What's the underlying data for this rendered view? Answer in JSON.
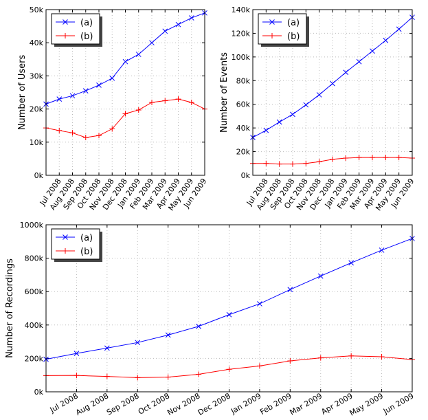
{
  "chart_data": [
    {
      "type": "line",
      "ylabel": "Number of Users",
      "categories": [
        null,
        "Jul 2008",
        "Aug 2008",
        "Sep 2008",
        "Oct 2008",
        "Nov 2008",
        "Dec 2008",
        "Jan 2009",
        "Feb 2009",
        "Mar 2009",
        "Apr 2009",
        "May 2009",
        "Jun 2009"
      ],
      "ylim": [
        0,
        50000
      ],
      "yticks": [
        {
          "value": 0,
          "label": "0k"
        },
        {
          "value": 10000,
          "label": "10k"
        },
        {
          "value": 20000,
          "label": "20k"
        },
        {
          "value": 30000,
          "label": "30k"
        },
        {
          "value": 40000,
          "label": "40k"
        },
        {
          "value": 50000,
          "label": "50k"
        }
      ],
      "grid": true,
      "legend": "upper left",
      "series": [
        {
          "name": "(a)",
          "color": "#0000ff",
          "marker": "x",
          "values": [
            21500,
            23000,
            24000,
            25500,
            27200,
            29300,
            34300,
            36500,
            40000,
            43500,
            45500,
            47500,
            49000
          ]
        },
        {
          "name": "(b)",
          "color": "#ff0000",
          "marker": "+",
          "values": [
            14300,
            13500,
            12800,
            11400,
            12000,
            14000,
            18600,
            19700,
            22000,
            22500,
            23000,
            22000,
            20000
          ]
        }
      ]
    },
    {
      "type": "line",
      "ylabel": "Number of Events",
      "categories": [
        null,
        "Jul 2008",
        "Aug 2008",
        "Sep 2008",
        "Oct 2008",
        "Nov 2008",
        "Dec 2008",
        "Jan 2009",
        "Feb 2009",
        "Mar 2009",
        "Apr 2009",
        "May 2009",
        "Jun 2009"
      ],
      "ylim": [
        0,
        140000
      ],
      "yticks": [
        {
          "value": 0,
          "label": "0k"
        },
        {
          "value": 20000,
          "label": "20k"
        },
        {
          "value": 40000,
          "label": "40k"
        },
        {
          "value": 60000,
          "label": "60k"
        },
        {
          "value": 80000,
          "label": "80k"
        },
        {
          "value": 100000,
          "label": "100k"
        },
        {
          "value": 120000,
          "label": "120k"
        },
        {
          "value": 140000,
          "label": "140k"
        }
      ],
      "grid": true,
      "legend": "upper left",
      "series": [
        {
          "name": "(a)",
          "color": "#0000ff",
          "marker": "x",
          "values": [
            32000,
            38000,
            45000,
            51500,
            59500,
            68000,
            77500,
            87000,
            96000,
            105000,
            114000,
            123500,
            133500
          ]
        },
        {
          "name": "(b)",
          "color": "#ff0000",
          "marker": "+",
          "values": [
            10000,
            10000,
            9500,
            9500,
            10000,
            11500,
            13500,
            14500,
            15000,
            15000,
            15000,
            15000,
            14500
          ]
        }
      ]
    },
    {
      "type": "line",
      "ylabel": "Number of Recordings",
      "categories": [
        null,
        "Jul 2008",
        "Aug 2008",
        "Sep 2008",
        "Oct 2008",
        "Nov 2008",
        "Dec 2008",
        "Jan 2009",
        "Feb 2009",
        "Mar 2009",
        "Apr 2009",
        "May 2009",
        "Jun 2009"
      ],
      "ylim": [
        0,
        1000000
      ],
      "yticks": [
        {
          "value": 0,
          "label": "0k"
        },
        {
          "value": 200000,
          "label": "200k"
        },
        {
          "value": 400000,
          "label": "400k"
        },
        {
          "value": 600000,
          "label": "600k"
        },
        {
          "value": 800000,
          "label": "800k"
        },
        {
          "value": 1000000,
          "label": "1000k"
        }
      ],
      "grid": true,
      "legend": "upper left",
      "series": [
        {
          "name": "(a)",
          "color": "#0000ff",
          "marker": "x",
          "values": [
            195000,
            230000,
            262000,
            295000,
            340000,
            392000,
            462000,
            527000,
            612000,
            693000,
            772000,
            848000,
            918000
          ]
        },
        {
          "name": "(b)",
          "color": "#ff0000",
          "marker": "+",
          "values": [
            97000,
            98000,
            92000,
            85000,
            88000,
            105000,
            135000,
            155000,
            185000,
            203000,
            215000,
            210000,
            193000
          ]
        }
      ]
    }
  ]
}
